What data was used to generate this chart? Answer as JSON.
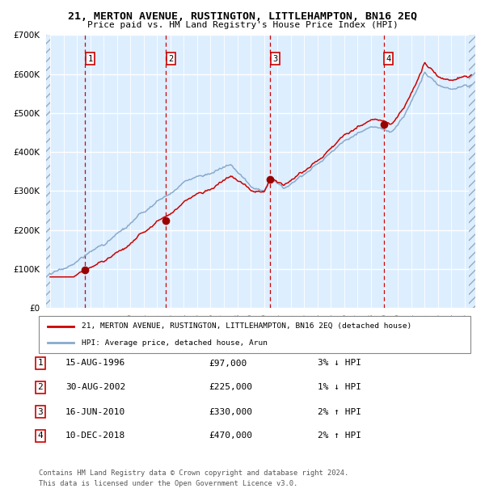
{
  "title": "21, MERTON AVENUE, RUSTINGTON, LITTLEHAMPTON, BN16 2EQ",
  "subtitle": "Price paid vs. HM Land Registry's House Price Index (HPI)",
  "legend_line1": "21, MERTON AVENUE, RUSTINGTON, LITTLEHAMPTON, BN16 2EQ (detached house)",
  "legend_line2": "HPI: Average price, detached house, Arun",
  "footer1": "Contains HM Land Registry data © Crown copyright and database right 2024.",
  "footer2": "This data is licensed under the Open Government Licence v3.0.",
  "sales": [
    {
      "num": 1,
      "date": "15-AUG-1996",
      "price": 97000,
      "pct": "3%",
      "dir": "↓",
      "year": 1996.62
    },
    {
      "num": 2,
      "date": "30-AUG-2002",
      "price": 225000,
      "pct": "1%",
      "dir": "↓",
      "year": 2002.66
    },
    {
      "num": 3,
      "date": "16-JUN-2010",
      "price": 330000,
      "pct": "2%",
      "dir": "↑",
      "year": 2010.46
    },
    {
      "num": 4,
      "date": "10-DEC-2018",
      "price": 470000,
      "pct": "2%",
      "dir": "↑",
      "year": 2018.94
    }
  ],
  "hpi_color": "#88aacc",
  "price_color": "#cc0000",
  "background_color": "#ddeeff",
  "grid_color": "#ffffff",
  "marker_color": "#990000",
  "vline_color": "#cc0000",
  "ylim": [
    0,
    700000
  ],
  "xlim_start": 1993.7,
  "xlim_end": 2025.8,
  "yticks": [
    0,
    100000,
    200000,
    300000,
    400000,
    500000,
    600000,
    700000
  ],
  "xticks": [
    1994,
    1995,
    1996,
    1997,
    1998,
    1999,
    2000,
    2001,
    2002,
    2003,
    2004,
    2005,
    2006,
    2007,
    2008,
    2009,
    2010,
    2011,
    2012,
    2013,
    2014,
    2015,
    2016,
    2017,
    2018,
    2019,
    2020,
    2021,
    2022,
    2023,
    2024,
    2025
  ]
}
